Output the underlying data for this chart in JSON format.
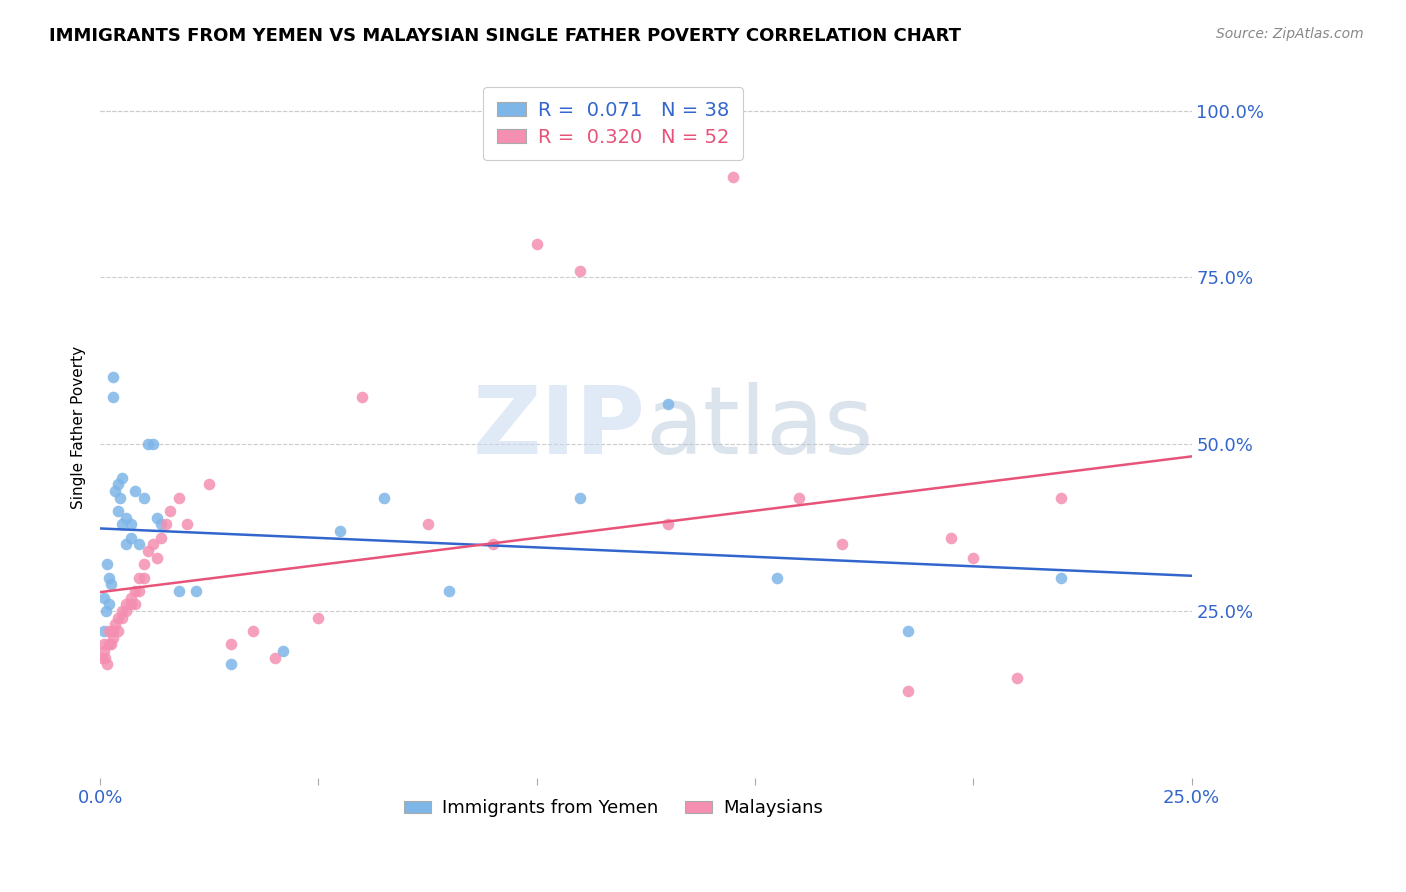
{
  "title": "IMMIGRANTS FROM YEMEN VS MALAYSIAN SINGLE FATHER POVERTY CORRELATION CHART",
  "source": "Source: ZipAtlas.com",
  "ylabel": "Single Father Poverty",
  "right_yticks": [
    "100.0%",
    "75.0%",
    "50.0%",
    "25.0%"
  ],
  "right_ytick_vals": [
    1.0,
    0.75,
    0.5,
    0.25
  ],
  "xlim": [
    0.0,
    0.25
  ],
  "ylim": [
    0.0,
    1.05
  ],
  "yemen_color": "#7EB6E8",
  "malaysian_color": "#F48FB1",
  "trendline_yemen_color": "#3366CC",
  "trendline_malaysian_color": "#E8537A",
  "legend_R_yemen": "0.071",
  "legend_N_yemen": "38",
  "legend_R_malaysian": "0.320",
  "legend_N_malaysian": "52",
  "watermark_zip": "ZIP",
  "watermark_atlas": "atlas",
  "yemen_x": [
    0.0008,
    0.001,
    0.0013,
    0.0015,
    0.002,
    0.002,
    0.0025,
    0.003,
    0.003,
    0.0035,
    0.004,
    0.004,
    0.0045,
    0.005,
    0.005,
    0.006,
    0.006,
    0.007,
    0.007,
    0.008,
    0.009,
    0.01,
    0.011,
    0.012,
    0.013,
    0.014,
    0.018,
    0.022,
    0.03,
    0.042,
    0.055,
    0.065,
    0.08,
    0.11,
    0.13,
    0.155,
    0.185,
    0.22
  ],
  "yemen_y": [
    0.27,
    0.22,
    0.25,
    0.32,
    0.26,
    0.3,
    0.29,
    0.6,
    0.57,
    0.43,
    0.4,
    0.44,
    0.42,
    0.45,
    0.38,
    0.35,
    0.39,
    0.38,
    0.36,
    0.43,
    0.35,
    0.42,
    0.5,
    0.5,
    0.39,
    0.38,
    0.28,
    0.28,
    0.17,
    0.19,
    0.37,
    0.42,
    0.28,
    0.42,
    0.56,
    0.3,
    0.22,
    0.3
  ],
  "malaysian_x": [
    0.0005,
    0.0008,
    0.001,
    0.0012,
    0.0015,
    0.002,
    0.002,
    0.0025,
    0.003,
    0.003,
    0.0035,
    0.004,
    0.004,
    0.005,
    0.005,
    0.006,
    0.006,
    0.007,
    0.007,
    0.008,
    0.008,
    0.009,
    0.009,
    0.01,
    0.01,
    0.011,
    0.012,
    0.013,
    0.014,
    0.015,
    0.016,
    0.018,
    0.02,
    0.025,
    0.03,
    0.035,
    0.04,
    0.05,
    0.06,
    0.075,
    0.09,
    0.1,
    0.11,
    0.13,
    0.145,
    0.16,
    0.17,
    0.185,
    0.195,
    0.2,
    0.21,
    0.22
  ],
  "malaysian_y": [
    0.18,
    0.19,
    0.2,
    0.18,
    0.17,
    0.22,
    0.2,
    0.2,
    0.22,
    0.21,
    0.23,
    0.24,
    0.22,
    0.25,
    0.24,
    0.26,
    0.25,
    0.27,
    0.26,
    0.28,
    0.26,
    0.3,
    0.28,
    0.32,
    0.3,
    0.34,
    0.35,
    0.33,
    0.36,
    0.38,
    0.4,
    0.42,
    0.38,
    0.44,
    0.2,
    0.22,
    0.18,
    0.24,
    0.57,
    0.38,
    0.35,
    0.8,
    0.76,
    0.38,
    0.9,
    0.42,
    0.35,
    0.13,
    0.36,
    0.33,
    0.15,
    0.42
  ]
}
